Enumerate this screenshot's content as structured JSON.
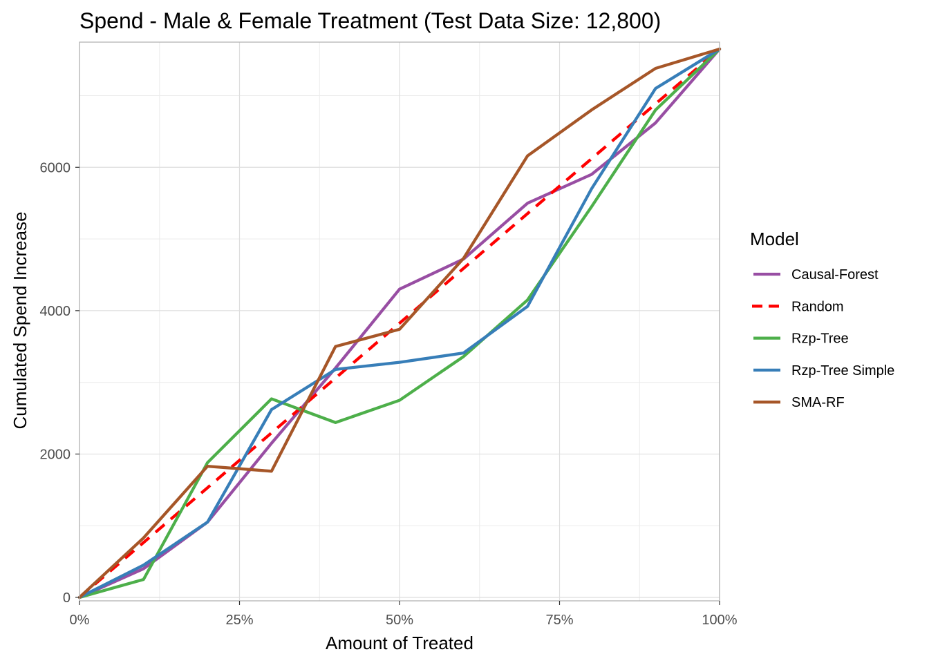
{
  "chart_data": {
    "type": "line",
    "title": "Spend - Male & Female Treatment (Test Data Size: 12,800)",
    "xlabel": "Amount of Treated",
    "ylabel": "Cumulated Spend Increase",
    "xlim": [
      0,
      1
    ],
    "ylim": [
      0,
      7650
    ],
    "x_ticks": [
      0,
      0.25,
      0.5,
      0.75,
      1.0
    ],
    "x_tick_labels": [
      "0%",
      "25%",
      "50%",
      "75%",
      "100%"
    ],
    "y_ticks": [
      0,
      2000,
      4000,
      6000
    ],
    "y_tick_labels": [
      "0",
      "2000",
      "4000",
      "6000"
    ],
    "grid": true,
    "legend": {
      "title": "Model",
      "position": "right"
    },
    "x": [
      0,
      0.1,
      0.2,
      0.3,
      0.4,
      0.5,
      0.6,
      0.7,
      0.8,
      0.9,
      1.0
    ],
    "series": [
      {
        "name": "Causal-Forest",
        "color": "#984ea3",
        "dashed": false,
        "values": [
          0,
          400,
          1050,
          2150,
          3200,
          4300,
          4720,
          5500,
          5900,
          6620,
          7650
        ]
      },
      {
        "name": "Random",
        "color": "#ff0000",
        "dashed": true,
        "values": [
          0,
          765,
          1530,
          2295,
          3060,
          3825,
          4590,
          5355,
          6120,
          6885,
          7650
        ]
      },
      {
        "name": "Rzp-Tree",
        "color": "#4daf4a",
        "dashed": false,
        "values": [
          0,
          250,
          1880,
          2770,
          2440,
          2750,
          3360,
          4150,
          5450,
          6800,
          7650
        ]
      },
      {
        "name": "Rzp-Tree Simple",
        "color": "#377eb8",
        "dashed": false,
        "values": [
          0,
          450,
          1050,
          2620,
          3180,
          3280,
          3410,
          4060,
          5700,
          7100,
          7650
        ]
      },
      {
        "name": "SMA-RF",
        "color": "#a65628",
        "dashed": false,
        "values": [
          0,
          830,
          1830,
          1760,
          3500,
          3740,
          4730,
          6160,
          6800,
          7380,
          7650
        ]
      }
    ]
  }
}
